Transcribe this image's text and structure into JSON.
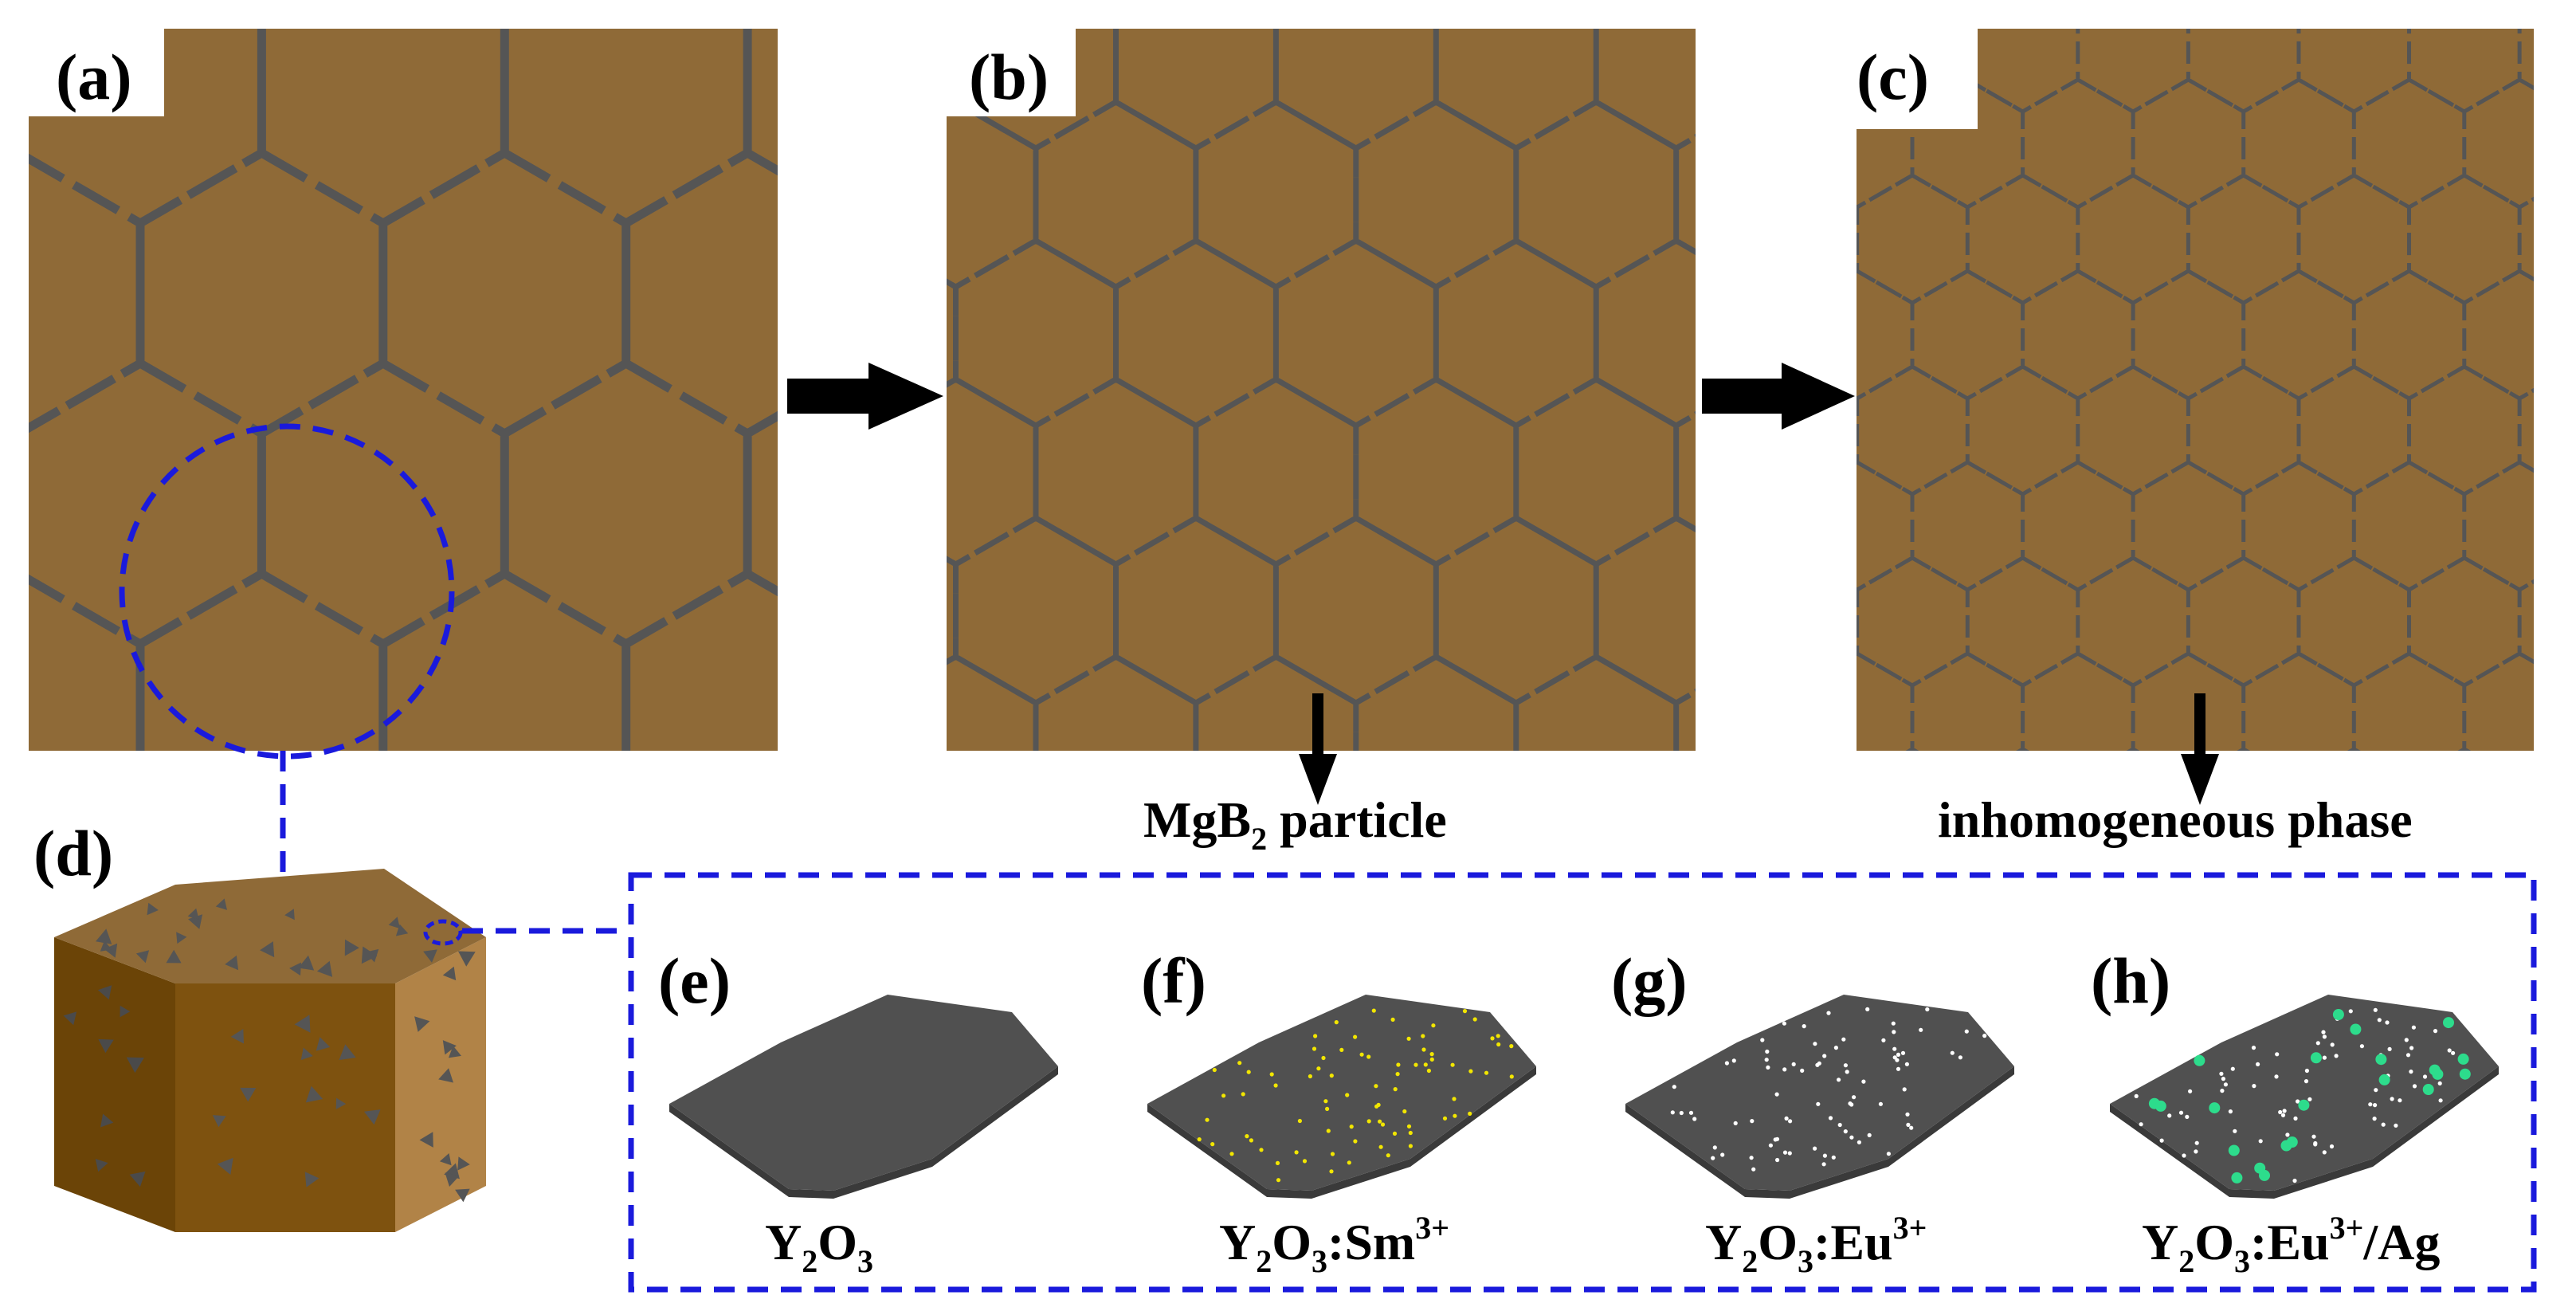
{
  "panels": {
    "a": {
      "label": "(a)"
    },
    "b": {
      "label": "(b)"
    },
    "c": {
      "label": "(c)"
    },
    "d": {
      "label": "(d)"
    },
    "e": {
      "label": "(e)",
      "caption_base": "Y",
      "caption_sub1": "2",
      "caption_mid": "O",
      "caption_sub2": "3",
      "caption_tail": "",
      "caption_sup": "",
      "caption_end": ""
    },
    "f": {
      "label": "(f)",
      "caption_base": "Y",
      "caption_sub1": "2",
      "caption_mid": "O",
      "caption_sub2": "3",
      "caption_tail": ":Sm",
      "caption_sup": "3+",
      "caption_end": ""
    },
    "g": {
      "label": "(g)",
      "caption_base": "Y",
      "caption_sub1": "2",
      "caption_mid": "O",
      "caption_sub2": "3",
      "caption_tail": ":Eu",
      "caption_sup": "3+",
      "caption_end": ""
    },
    "h": {
      "label": "(h)",
      "caption_base": "Y",
      "caption_sub1": "2",
      "caption_mid": "O",
      "caption_sub2": "3",
      "caption_tail": ":Eu",
      "caption_sup": "3+",
      "caption_end": "/Ag"
    }
  },
  "annotations": {
    "mgb2_pre": "MgB",
    "mgb2_sub": "2",
    "mgb2_post": " particle",
    "inhomogeneous": "inhomogeneous phase"
  },
  "colors": {
    "grain_fill": "#8f6a37",
    "boundary": "#555555",
    "highlight": "#1a1adc",
    "arrow": "#000000",
    "plate": "#505050",
    "dopant_sm": "#f2e600",
    "dopant_eu": "#ffffff",
    "dopant_ag": "#2ddc8c",
    "prism_top": "#8f6a37",
    "prism_left": "#6b4407",
    "prism_front": "#7e520f",
    "prism_right": "#b18347"
  }
}
